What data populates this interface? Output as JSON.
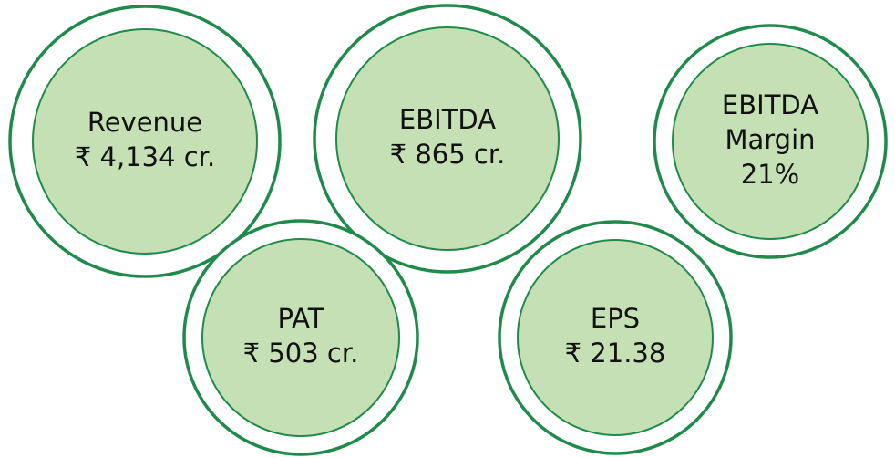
{
  "items": [
    {
      "lines": [
        "Revenue",
        "₹ 4,134 cr."
      ]
    },
    {
      "lines": [
        "EBITDA",
        "₹ 865 cr."
      ]
    },
    {
      "lines": [
        "EBITDA",
        "Margin",
        "21%"
      ]
    },
    {
      "lines": [
        "PAT",
        "₹ 503 cr."
      ]
    },
    {
      "lines": [
        "EPS",
        "₹ 21.38"
      ]
    }
  ]
}
